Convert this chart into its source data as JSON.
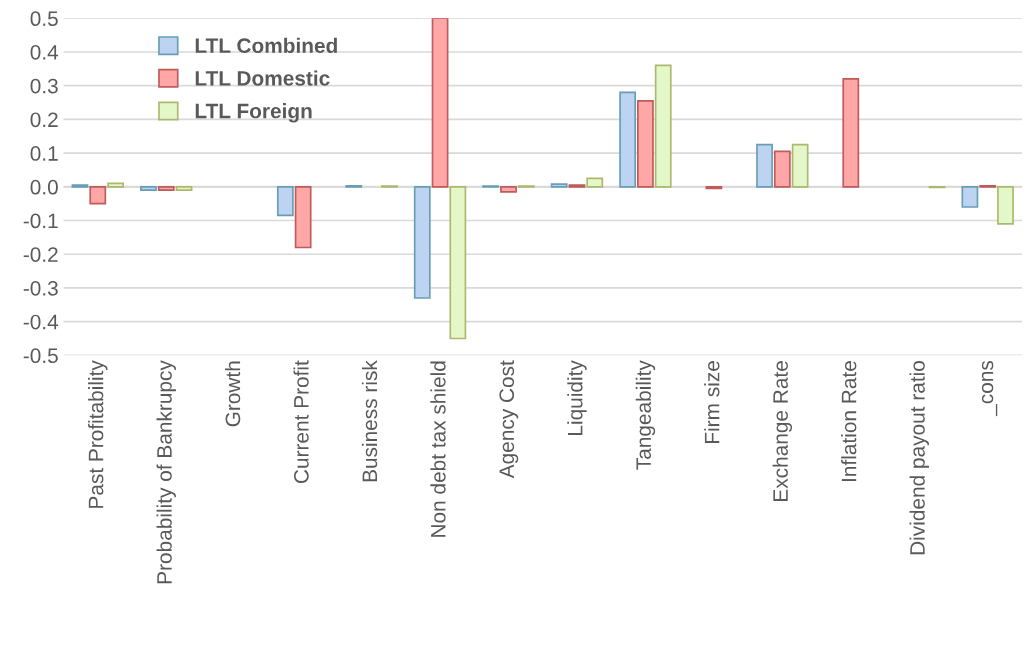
{
  "chart_data": {
    "type": "bar",
    "categories": [
      "Past Profitability",
      "Probability of Bankrupcy",
      "Growth",
      "Current Profit",
      "Business risk",
      "Non debt tax shield",
      "Agency Cost",
      "Liquidity",
      "Tangeability",
      "Firm size",
      "Exchange Rate",
      "Inflation Rate",
      "Dividend payout ratio",
      "_cons"
    ],
    "series": [
      {
        "name": "LTL Combined",
        "color": "#bcd3f2",
        "values": [
          0.005,
          -0.01,
          null,
          -0.085,
          0.003,
          -0.33,
          0.002,
          0.008,
          0.28,
          null,
          0.125,
          null,
          null,
          -0.06
        ]
      },
      {
        "name": "LTL Domestic",
        "color": "#ffa6a6",
        "values": [
          -0.05,
          -0.01,
          null,
          -0.18,
          null,
          0.5,
          -0.015,
          0.005,
          0.255,
          -0.005,
          0.105,
          0.32,
          null,
          0.003
        ]
      },
      {
        "name": "LTL Foreign",
        "color": "#e4f7c8",
        "values": [
          0.01,
          -0.01,
          null,
          null,
          0.002,
          -0.45,
          0.002,
          0.025,
          0.36,
          null,
          0.125,
          null,
          -0.002,
          -0.11
        ]
      }
    ],
    "ylim": [
      -0.5,
      0.5
    ],
    "yticks": [
      {
        "value": -0.5,
        "label": "-0.5"
      },
      {
        "value": -0.4,
        "label": "-0.4"
      },
      {
        "value": -0.3,
        "label": "-0.3"
      },
      {
        "value": -0.2,
        "label": "-0.2"
      },
      {
        "value": -0.1,
        "label": "-0.1"
      },
      {
        "value": 0,
        "label": "0.0"
      },
      {
        "value": 0.1,
        "label": "0.1"
      },
      {
        "value": 0.2,
        "label": "0.2"
      },
      {
        "value": 0.3,
        "label": "0.3"
      },
      {
        "value": 0.4,
        "label": "0.4"
      },
      {
        "value": 0.5,
        "label": "0.5"
      }
    ],
    "grid": "y",
    "legend": "top left"
  }
}
